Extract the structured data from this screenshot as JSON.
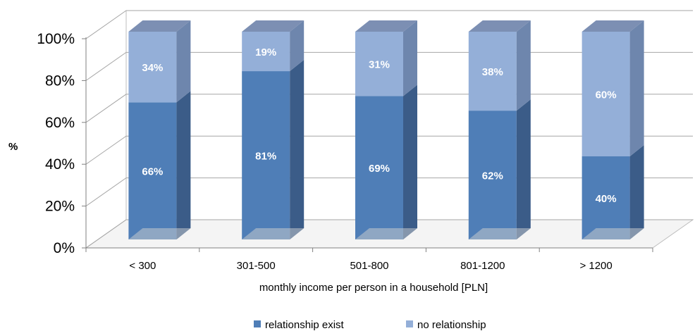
{
  "chart_data": {
    "type": "bar",
    "stacked": true,
    "percent_stacked": true,
    "three_d": true,
    "categories": [
      "< 300",
      "301-500",
      "501-800",
      "801-1200",
      "> 1200"
    ],
    "series": [
      {
        "name": "relationship exist",
        "values": [
          66,
          81,
          69,
          62,
          40
        ],
        "labels": [
          "66%",
          "81%",
          "69%",
          "62%",
          "40%"
        ],
        "color": "#4F7EB7"
      },
      {
        "name": "no relationship",
        "values": [
          34,
          19,
          31,
          38,
          60
        ],
        "labels": [
          "34%",
          "19%",
          "31%",
          "38%",
          "60%"
        ],
        "color": "#94AFD8"
      }
    ],
    "title": "",
    "xlabel": "monthly income per person in a household [PLN]",
    "ylabel": "%",
    "ylim": [
      0,
      100
    ],
    "yticks": [
      "0%",
      "20%",
      "40%",
      "60%",
      "80%",
      "100%"
    ],
    "grid": true,
    "legend_position": "bottom"
  }
}
